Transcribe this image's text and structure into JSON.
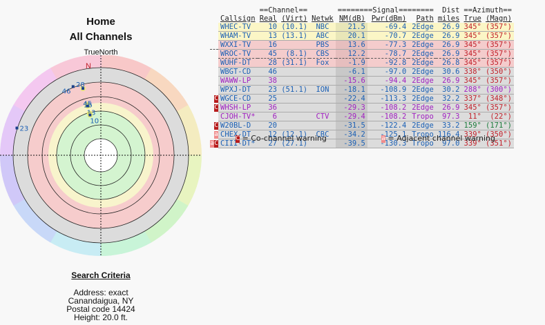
{
  "header": {
    "title": "Home",
    "subtitle": "All Channels",
    "compass_label": "TrueNorth",
    "north_label": "N"
  },
  "search_criteria": {
    "heading": "Search Criteria",
    "lines": [
      "Address: exact",
      "Canandaigua, NY",
      "Postal code 14424",
      "Height: 20.0 ft."
    ]
  },
  "table": {
    "group_headers": {
      "channel": "==Channel==",
      "signal": "========Signal========",
      "dist": "Dist",
      "azimuth": "==Azimuth=="
    },
    "columns": [
      "Callsign",
      "Real",
      "(Virt)",
      "Netwk",
      "NM(dB)",
      "Pwr(dBm)",
      "Path",
      "miles",
      "True",
      "(Magn)"
    ],
    "rows": [
      {
        "warn": "",
        "callsign": "WHEC-TV",
        "real": "10",
        "virt": "(10.1)",
        "netwk": "NBC",
        "nm": "21.5",
        "pwr": "-69.4",
        "path": "2Edge",
        "miles": "26.9",
        "true": "345°",
        "magn": "(357°)",
        "band": "y",
        "color": "blue",
        "azcolor": "red"
      },
      {
        "warn": "",
        "callsign": "WHAM-TV",
        "real": "13",
        "virt": "(13.1)",
        "netwk": "ABC",
        "nm": "20.1",
        "pwr": "-70.7",
        "path": "2Edge",
        "miles": "26.9",
        "true": "345°",
        "magn": "(357°)",
        "band": "y",
        "color": "blue",
        "azcolor": "red"
      },
      {
        "warn": "",
        "callsign": "WXXI-TV",
        "real": "16",
        "virt": "",
        "netwk": "PBS",
        "nm": "13.6",
        "pwr": "-77.3",
        "path": "2Edge",
        "miles": "26.9",
        "true": "345°",
        "magn": "(357°)",
        "band": "p",
        "color": "blue",
        "azcolor": "red"
      },
      {
        "warn": "",
        "callsign": "WROC-TV",
        "real": "45",
        "virt": "(8.1)",
        "netwk": "CBS",
        "nm": "12.2",
        "pwr": "-78.7",
        "path": "2Edge",
        "miles": "26.9",
        "true": "345°",
        "magn": "(357°)",
        "band": "p",
        "color": "blue",
        "azcolor": "red",
        "selected": true
      },
      {
        "warn": "",
        "callsign": "WUHF-DT",
        "real": "28",
        "virt": "(31.1)",
        "netwk": "Fox",
        "nm": "-1.9",
        "pwr": "-92.8",
        "path": "2Edge",
        "miles": "26.8",
        "true": "345°",
        "magn": "(357°)",
        "band": "p",
        "color": "blue",
        "azcolor": "red"
      },
      {
        "warn": "",
        "callsign": "WBGT-CD",
        "real": "46",
        "virt": "",
        "netwk": "",
        "nm": "-6.1",
        "pwr": "-97.0",
        "path": "2Edge",
        "miles": "30.6",
        "true": "338°",
        "magn": "(350°)",
        "band": "g",
        "color": "blue",
        "azcolor": "red"
      },
      {
        "warn": "",
        "callsign": "WAWW-LP",
        "real": "38",
        "virt": "",
        "netwk": "",
        "nm": "-15.6",
        "pwr": "-94.4",
        "path": "2Edge",
        "miles": "26.9",
        "true": "345°",
        "magn": "(357°)",
        "band": "g",
        "color": "purple",
        "azcolor": "red"
      },
      {
        "warn": "",
        "callsign": "WPXJ-DT",
        "real": "23",
        "virt": "(51.1)",
        "netwk": "ION",
        "nm": "-18.1",
        "pwr": "-108.9",
        "path": "2Edge",
        "miles": "30.2",
        "true": "288°",
        "magn": "(300°)",
        "band": "g",
        "color": "blue",
        "azcolor": "purple"
      },
      {
        "warn": "C",
        "callsign": "WGCE-CD",
        "real": "25",
        "virt": "",
        "netwk": "",
        "nm": "-22.4",
        "pwr": "-113.3",
        "path": "2Edge",
        "miles": "32.2",
        "true": "337°",
        "magn": "(348°)",
        "band": "g",
        "color": "blue",
        "azcolor": "red"
      },
      {
        "warn": "C",
        "callsign": "WHSH-LP",
        "real": "36",
        "virt": "",
        "netwk": "",
        "nm": "-29.3",
        "pwr": "-108.2",
        "path": "2Edge",
        "miles": "26.9",
        "true": "345°",
        "magn": "(357°)",
        "band": "g",
        "color": "purple",
        "azcolor": "red"
      },
      {
        "warn": "",
        "callsign": "CJOH-TV*",
        "real": "6",
        "virt": "",
        "netwk": "CTV",
        "nm": "-29.4",
        "pwr": "-108.2",
        "path": "Tropo",
        "miles": "97.3",
        "true": "11°",
        "magn": "(22°)",
        "band": "g",
        "color": "purple",
        "azcolor": "red"
      },
      {
        "warn": "C",
        "callsign": "W20BL-D",
        "real": "20",
        "virt": "",
        "netwk": "",
        "nm": "-31.5",
        "pwr": "-122.4",
        "path": "2Edge",
        "miles": "33.2",
        "true": "159°",
        "magn": "(171°)",
        "band": "g",
        "color": "blue",
        "azcolor": "green"
      },
      {
        "warn": "a",
        "callsign": "CHEX-DT",
        "real": "12",
        "virt": "(12.1)",
        "netwk": "CBC",
        "nm": "-34.2",
        "pwr": "-125.1",
        "path": "Tropo",
        "miles": "116.4",
        "true": "339°",
        "magn": "(350°)",
        "band": "g",
        "color": "blue",
        "azcolor": "red"
      },
      {
        "warn": "aC",
        "callsign": "CIII-DT*",
        "real": "27",
        "virt": "(27.1)",
        "netwk": "",
        "nm": "-39.5",
        "pwr": "-130.3",
        "path": "Tropo",
        "miles": "97.0",
        "true": "339°",
        "magn": "(351°)",
        "band": "g",
        "color": "blue",
        "azcolor": "red"
      }
    ]
  },
  "legend": {
    "cochannel_symbol": "C",
    "cochannel_label": "= Co-channel warning",
    "adjacent_symbol": "a",
    "adjacent_label": "= Adjacent channel warning"
  },
  "chart_data": {
    "type": "polar",
    "title": "All Channels",
    "orientation": "TrueNorth",
    "rings": 6,
    "points": [
      {
        "label": "28",
        "azimuth": 345,
        "ring_value": -1.9
      },
      {
        "label": "45",
        "azimuth": 345,
        "ring_value": 12.2
      },
      {
        "label": "16",
        "azimuth": 345,
        "ring_value": 13.6
      },
      {
        "label": "13",
        "azimuth": 345,
        "ring_value": 20.1
      },
      {
        "label": "10",
        "azimuth": 345,
        "ring_value": 21.5
      },
      {
        "label": "46",
        "azimuth": 338,
        "ring_value": -6.1
      },
      {
        "label": "23",
        "azimuth": 288,
        "ring_value": -18.1
      }
    ]
  }
}
